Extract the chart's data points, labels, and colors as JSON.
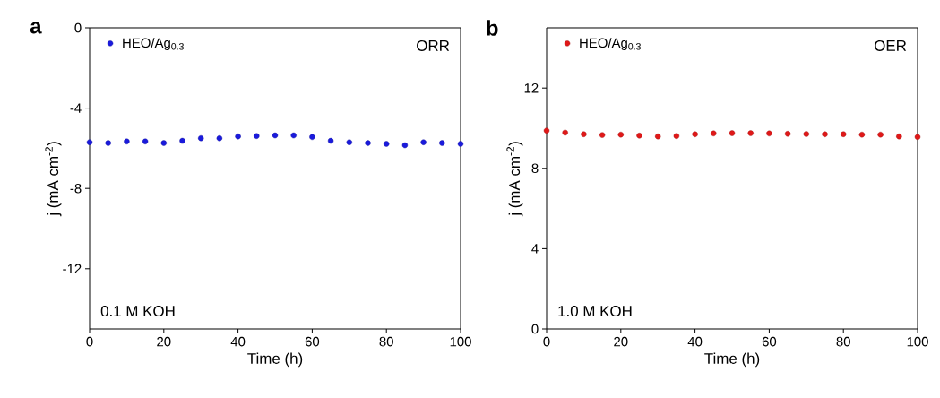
{
  "chart_data": [
    {
      "type": "scatter",
      "xlabel": "Time (h)",
      "ylabel": "j (mA cm$^{-2}$)",
      "xlim": [
        0,
        100
      ],
      "xticks": [
        0,
        20,
        40,
        60,
        80,
        100
      ],
      "ylim": [
        -15,
        0
      ],
      "yticks": [
        -12,
        -8,
        -4,
        0
      ],
      "marker": "circle",
      "legend": "top left",
      "annotations": [
        "a",
        "ORR",
        "0.1 M KOH"
      ],
      "x": [
        0,
        5,
        10,
        15,
        20,
        25,
        30,
        35,
        40,
        45,
        50,
        55,
        60,
        65,
        70,
        75,
        80,
        85,
        90,
        95,
        100
      ],
      "series": [
        {
          "name": "HEO/Ag$_{0.3}$",
          "color": "#1a1adc",
          "values": [
            -5.7,
            -5.74,
            -5.66,
            -5.66,
            -5.74,
            -5.63,
            -5.5,
            -5.5,
            -5.41,
            -5.39,
            -5.36,
            -5.36,
            -5.44,
            -5.63,
            -5.7,
            -5.74,
            -5.78,
            -5.85,
            -5.7,
            -5.74,
            -5.78
          ]
        }
      ]
    },
    {
      "type": "scatter",
      "xlabel": "Time (h)",
      "ylabel": "j (mA cm$^{-2}$)",
      "xlim": [
        0,
        100
      ],
      "xticks": [
        0,
        20,
        40,
        60,
        80,
        100
      ],
      "ylim": [
        0,
        15
      ],
      "yticks": [
        0,
        4,
        8,
        12
      ],
      "marker": "circle",
      "legend": "top left",
      "annotations": [
        "b",
        "OER",
        "1.0 M KOH"
      ],
      "x": [
        0,
        5,
        10,
        15,
        20,
        25,
        30,
        35,
        40,
        45,
        50,
        55,
        60,
        65,
        70,
        75,
        80,
        85,
        90,
        95,
        100
      ],
      "series": [
        {
          "name": "HEO/Ag$_{0.3}$",
          "color": "#e01818",
          "values": [
            9.88,
            9.78,
            9.7,
            9.66,
            9.68,
            9.63,
            9.59,
            9.61,
            9.7,
            9.74,
            9.75,
            9.75,
            9.74,
            9.72,
            9.71,
            9.7,
            9.7,
            9.68,
            9.68,
            9.59,
            9.56
          ]
        }
      ]
    }
  ]
}
